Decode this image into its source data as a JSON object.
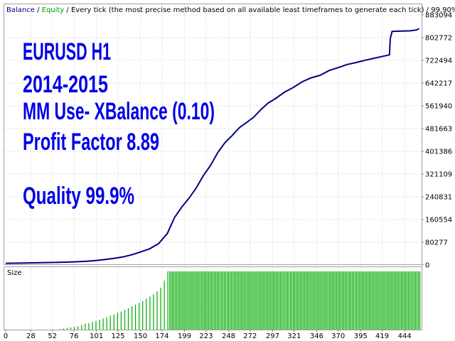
{
  "header": {
    "balance_label": "Balance",
    "sep1": " / ",
    "equity_label": "Equity",
    "sep2": " / ",
    "description": "Every tick (the most precise method based on all available least timeframes to generate each tick)",
    "sep3": " / ",
    "quality": "99.90%"
  },
  "overlay": {
    "line1": "EURUSD H1",
    "line2": "2014-2015",
    "line3": "MM Use- XBalance (0.10)",
    "line4": "Profit Factor 8.89",
    "line5": "Quality 99.9%"
  },
  "size_panel_label": "Size",
  "colors": {
    "balance": "#000080",
    "equity": "#00a000",
    "header_sep": "#000000",
    "size_bars": "#00aa00",
    "overlay_text": "#0000e8",
    "grid": "#d0d0d0"
  },
  "chart_data": {
    "type": "line",
    "title": "",
    "y_ticks": [
      "883094",
      "802772",
      "722494",
      "642217",
      "561940",
      "481663",
      "401386",
      "321109",
      "240831",
      "160554",
      "80277",
      "0"
    ],
    "x_ticks": [
      "0",
      "28",
      "52",
      "76",
      "101",
      "125",
      "150",
      "174",
      "199",
      "223",
      "248",
      "272",
      "297",
      "321",
      "346",
      "370",
      "395",
      "419",
      "444"
    ],
    "ylim": [
      0,
      883094
    ],
    "xlim": [
      0,
      462
    ],
    "grid": true,
    "series": [
      {
        "name": "Balance",
        "x": [
          0,
          20,
          40,
          60,
          76,
          90,
          101,
          110,
          120,
          130,
          140,
          150,
          160,
          170,
          180,
          188,
          196,
          204,
          212,
          220,
          228,
          236,
          244,
          252,
          260,
          268,
          276,
          284,
          292,
          300,
          310,
          320,
          330,
          340,
          350,
          360,
          370,
          380,
          390,
          400,
          410,
          420,
          427,
          428,
          430,
          440,
          450,
          457,
          460
        ],
        "y": [
          6000,
          7000,
          8000,
          9500,
          11000,
          13000,
          16000,
          19000,
          23000,
          28000,
          36000,
          46000,
          57000,
          75000,
          112000,
          168000,
          205000,
          236000,
          272000,
          316000,
          352000,
          397000,
          432000,
          457000,
          485000,
          503000,
          522000,
          549000,
          572000,
          587000,
          610000,
          627000,
          647000,
          661000,
          670000,
          687000,
          697000,
          708000,
          715000,
          723000,
          730000,
          737000,
          742000,
          800000,
          825000,
          826000,
          827000,
          830000,
          835000
        ]
      }
    ],
    "size_panel": {
      "label": "Size",
      "bars_x": [
        60,
        64,
        68,
        72,
        76,
        80,
        84,
        88,
        92,
        96,
        100,
        104,
        108,
        112,
        116,
        120,
        124,
        128,
        132,
        136,
        140,
        144,
        148,
        152,
        156,
        160,
        164,
        168,
        172,
        176,
        180
      ],
      "bars_relative": [
        0.01,
        0.02,
        0.03,
        0.04,
        0.05,
        0.06,
        0.08,
        0.1,
        0.11,
        0.13,
        0.15,
        0.17,
        0.19,
        0.21,
        0.24,
        0.26,
        0.29,
        0.31,
        0.34,
        0.37,
        0.4,
        0.43,
        0.46,
        0.49,
        0.53,
        0.57,
        0.61,
        0.66,
        0.72,
        0.84,
        1.0
      ],
      "full_from_x": 182
    }
  }
}
